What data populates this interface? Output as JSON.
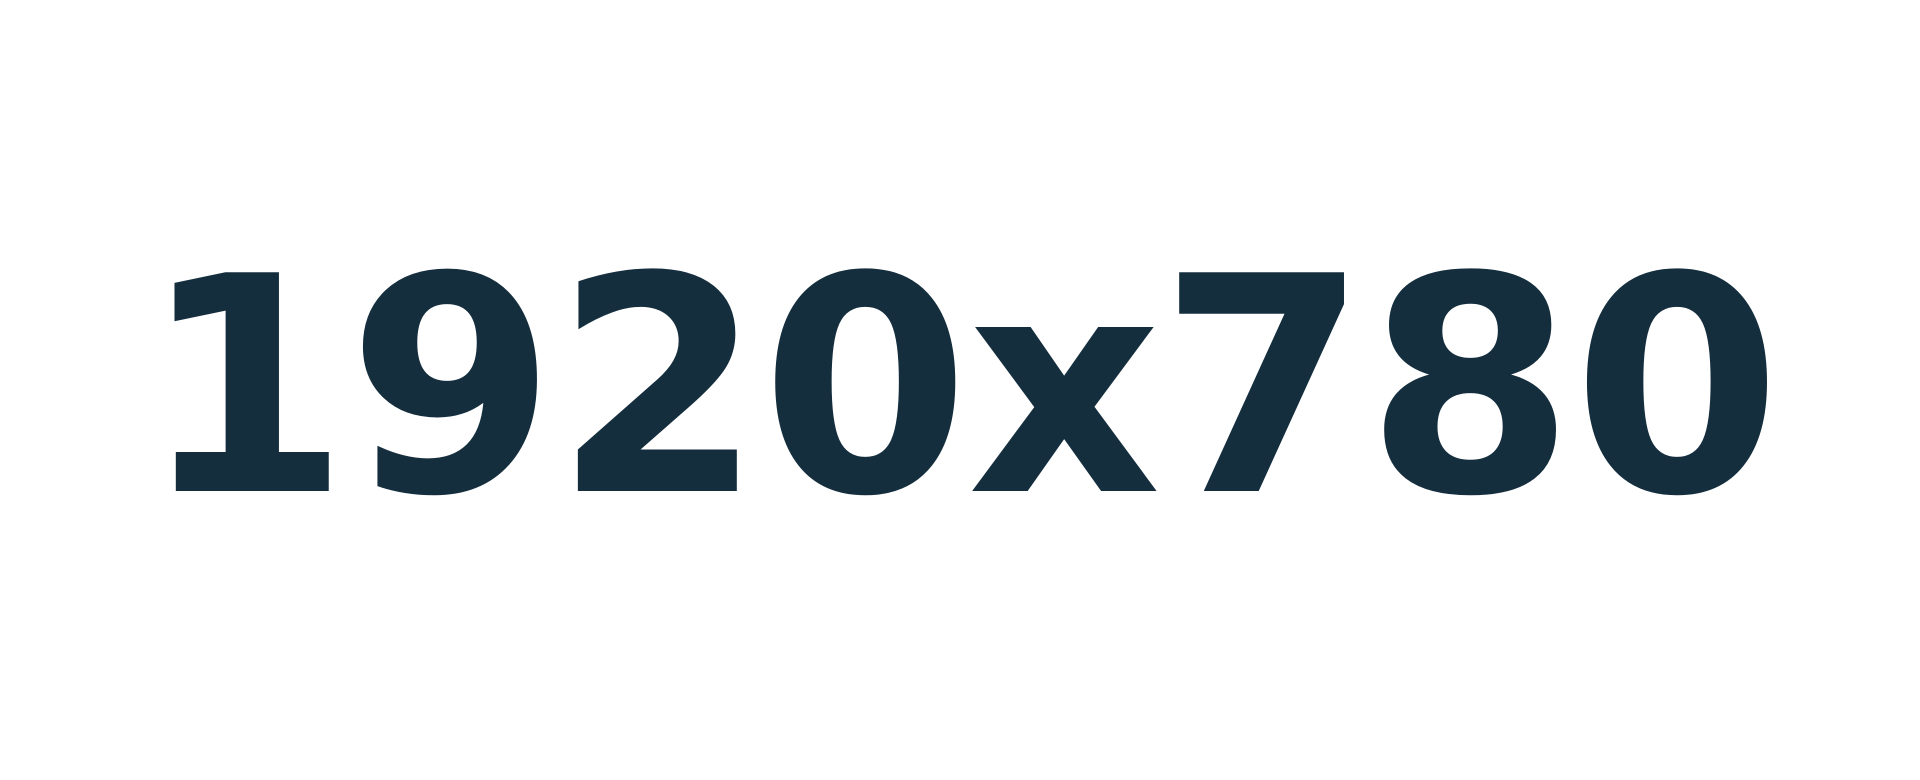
{
  "placeholder": {
    "label": "1920x780",
    "text_color": "#152e3e",
    "background_color": "#ffffff"
  }
}
